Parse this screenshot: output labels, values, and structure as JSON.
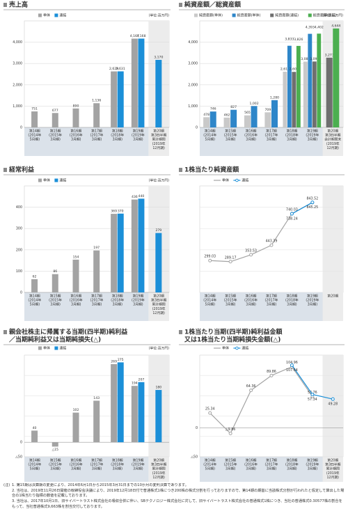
{
  "chart_data": [
    {
      "type": "bar",
      "title": [
        "売上高"
      ],
      "unit": "(単位:百万円)",
      "categories": [
        [
          "第14期",
          "(2014年",
          "5月期)"
        ],
        [
          "第15期",
          "(2015年",
          "3月期)"
        ],
        [
          "第16期",
          "(2016年",
          "3月期)"
        ],
        [
          "第17期",
          "(2017年",
          "3月期)"
        ],
        [
          "第18期",
          "(2018年",
          "3月期)"
        ],
        [
          "第19期",
          "(2019年",
          "3月期)"
        ],
        [
          "第20期",
          "第3四半期",
          "累計期間",
          "(2019年",
          "12月期)"
        ]
      ],
      "series": [
        {
          "name": "単体",
          "color": "#a3a3a3",
          "values": [
            751,
            677,
            890,
            1136,
            2629,
            4167,
            null
          ],
          "value_labels": [
            "751",
            "677",
            "890",
            "1,136",
            "2,629",
            "4,167",
            null
          ]
        },
        {
          "name": "連結",
          "color": "#1b8fd8",
          "values": [
            null,
            null,
            null,
            null,
            2631,
            4168,
            3170
          ],
          "value_labels": [
            null,
            null,
            null,
            null,
            "2,631",
            "4,168",
            "3,170"
          ]
        }
      ],
      "ylim": [
        0,
        5000
      ],
      "yticks": [
        0,
        {
          "value": 1000,
          "label": "1,000"
        },
        {
          "value": 2000,
          "label": "2,000"
        },
        {
          "value": 3000,
          "label": "3,000"
        },
        {
          "value": 4000,
          "label": "4,000"
        }
      ],
      "grid": true
    },
    {
      "type": "bar",
      "title": [
        "純資産額／総資産額"
      ],
      "unit": "(単位:百万円)",
      "categories": [
        [
          "第14期",
          "(2014年",
          "5月期)"
        ],
        [
          "第15期",
          "(2015年",
          "3月期)"
        ],
        [
          "第16期",
          "(2016年",
          "3月期)"
        ],
        [
          "第17期",
          "(2017年",
          "3月期)"
        ],
        [
          "第18期",
          "(2018年",
          "3月期)"
        ],
        [
          "第19期",
          "(2019年",
          "3月期)"
        ],
        [
          "第20期",
          "第3四半期",
          "会計期間末",
          "(2019年",
          "12月期)"
        ]
      ],
      "series": [
        {
          "name": "純資産額(単体)",
          "color": "#c9c9c9",
          "values": [
            478,
            462,
            565,
            709,
            2614,
            3087,
            null
          ],
          "value_labels": [
            "478",
            "462",
            "565",
            "709",
            "2,614",
            "3,087",
            null
          ]
        },
        {
          "name": "総資産額(単体)",
          "color": "#2e86c9",
          "values": [
            746,
            827,
            1002,
            1280,
            3833,
            4393,
            null
          ],
          "value_labels": [
            "746",
            "827",
            "1,002",
            "1,280",
            "3,833",
            "4,393",
            null
          ]
        },
        {
          "name": "純資産額(連結)",
          "color": "#6f6f6f",
          "values": [
            null,
            null,
            null,
            null,
            2607,
            3094,
            3273
          ],
          "value_labels": [
            null,
            null,
            null,
            null,
            "2,607",
            "3,094",
            "3,273"
          ]
        },
        {
          "name": "総資産額(連結)",
          "color": "#4caf50",
          "values": [
            null,
            null,
            null,
            null,
            3826,
            4402,
            4644
          ],
          "value_labels": [
            null,
            null,
            null,
            null,
            "3,826",
            "4,402",
            "4,644"
          ]
        }
      ],
      "ylim": [
        0,
        5000
      ],
      "yticks": [
        0,
        {
          "value": 1000,
          "label": "1,000"
        },
        {
          "value": 2000,
          "label": "2,000"
        },
        {
          "value": 3000,
          "label": "3,000"
        },
        {
          "value": 4000,
          "label": "4,000"
        }
      ],
      "grid": true
    },
    {
      "type": "bar",
      "title": [
        "経常利益"
      ],
      "unit": "(単位:百万円)",
      "categories": [
        [
          "第14期",
          "(2014年",
          "5月期)"
        ],
        [
          "第15期",
          "(2015年",
          "3月期)"
        ],
        [
          "第16期",
          "(2016年",
          "3月期)"
        ],
        [
          "第17期",
          "(2017年",
          "3月期)"
        ],
        [
          "第18期",
          "(2018年",
          "3月期)"
        ],
        [
          "第19期",
          "(2019年",
          "3月期)"
        ],
        [
          "第20期",
          "第3四半期",
          "累計期間",
          "(2019年",
          "12月期)"
        ]
      ],
      "series": [
        {
          "name": "単体",
          "color": "#a3a3a3",
          "values": [
            62,
            86,
            154,
            197,
            369,
            436,
            null
          ]
        },
        {
          "name": "連結",
          "color": "#1b8fd8",
          "values": [
            null,
            null,
            null,
            null,
            370,
            440,
            279
          ]
        }
      ],
      "ylim": [
        0,
        500
      ],
      "yticks": [
        0,
        100,
        200,
        300,
        400
      ],
      "grid": true
    },
    {
      "type": "line",
      "title": [
        "1株当たり純資産額"
      ],
      "categories": [
        [
          "第14期",
          "(2014年",
          "5月期)"
        ],
        [
          "第15期",
          "(2015年",
          "3月期)"
        ],
        [
          "第16期",
          "(2016年",
          "3月期)"
        ],
        [
          "第17期",
          "(2017年",
          "3月期)"
        ],
        [
          "第18期",
          "(2018年",
          "3月期)"
        ],
        [
          "第19期",
          "(2019年",
          "3月期)"
        ],
        [
          "第20期"
        ]
      ],
      "series": [
        {
          "name": "単体",
          "color": "#a3a3a3",
          "values": [
            299.03,
            289.17,
            353.53,
            443.39,
            740.03,
            843.52,
            null
          ]
        },
        {
          "name": "連結",
          "color": "#1b8fd8",
          "values": [
            null,
            null,
            null,
            null,
            738.24,
            845.25,
            null
          ]
        }
      ],
      "ylim": [
        0,
        1000
      ],
      "grid": true
    },
    {
      "type": "bar",
      "title": [
        "親会社株主に帰属する当期(四半期)純利益",
        "／当期純利益又は当期純損失(△)"
      ],
      "unit": "(単位:百万円)",
      "categories": [
        [
          "第14期",
          "(2014年",
          "5月期)"
        ],
        [
          "第15期",
          "(2015年",
          "3月期)"
        ],
        [
          "第16期",
          "(2016年",
          "3月期)"
        ],
        [
          "第17期",
          "(2017年",
          "3月期)"
        ],
        [
          "第18期",
          "(2018年",
          "3月期)"
        ],
        [
          "第19期",
          "(2019年",
          "3月期)"
        ],
        [
          "第20期",
          "第3四半期",
          "累計期間",
          "(2019年",
          "12月期)"
        ]
      ],
      "series": [
        {
          "name": "単体",
          "color": "#a3a3a3",
          "values": [
            40,
            -15,
            102,
            143,
            269,
            194,
            null
          ],
          "value_labels": [
            "40",
            "△15",
            "102",
            "143",
            "269",
            "194",
            null
          ]
        },
        {
          "name": "連結",
          "color": "#1b8fd8",
          "values": [
            null,
            null,
            null,
            null,
            275,
            207,
            180
          ]
        }
      ],
      "ylim": [
        -50,
        300
      ],
      "yticks": [
        {
          "value": -50,
          "label": "△50"
        },
        0
      ],
      "grid": true
    },
    {
      "type": "line",
      "title": [
        "1株当たり当期(四半期)純利益金額",
        "又は1株当たり当期純損失金額(△)"
      ],
      "categories": [
        [
          "第14期",
          "(2014年",
          "5月期)"
        ],
        [
          "第15期",
          "(2015年",
          "3月期)"
        ],
        [
          "第16期",
          "(2016年",
          "3月期)"
        ],
        [
          "第17期",
          "(2017年",
          "3月期)"
        ],
        [
          "第18期",
          "(2018年",
          "3月期)"
        ],
        [
          "第19期",
          "(2019年",
          "3月期)"
        ],
        [
          "第20期",
          "第3四半期",
          "累計期間",
          "(2019年",
          "12月期)"
        ]
      ],
      "series": [
        {
          "name": "単体",
          "color": "#a3a3a3",
          "values": [
            25.34,
            -9.86,
            64.36,
            89.86,
            104.96,
            53.76,
            null
          ],
          "value_labels": [
            "25.34",
            "△9.86",
            "64.36",
            "89.86",
            "104.96",
            "53.76",
            null
          ]
        },
        {
          "name": "連結",
          "color": "#1b8fd8",
          "values": [
            null,
            null,
            null,
            null,
            107.64,
            57.34,
            49.28
          ]
        }
      ],
      "ylim": [
        -50,
        125
      ],
      "yticks": [
        {
          "value": -50,
          "label": "△50"
        },
        0
      ],
      "grid": true
    }
  ],
  "notes": {
    "label": "(注)",
    "items": [
      "1. 第15期は決算期の変更により、2014年6月1日から2015年3月31日までの10か月の変則決算であります。",
      "2. 当社は、2019年11月26日開催の取締役会決議により、2019年12月18日付で普通株式1株につき200株の株式分割を行っておりますので、第14期の期首に当該株式分割が行われたと仮定して算出した場合の1株当たり指標の数値を記載しております。",
      "3. 当社は、2017年10月1日、旧サイバートラスト株式会社の吸収合併に伴い、SBテクノロジー株式会社に対して、旧サイバートラスト株式会社の普通株式1株につき、当社の普通株式0.30577株の割合をもって、当社普通株式9,663株を割当交付しております。"
    ]
  }
}
